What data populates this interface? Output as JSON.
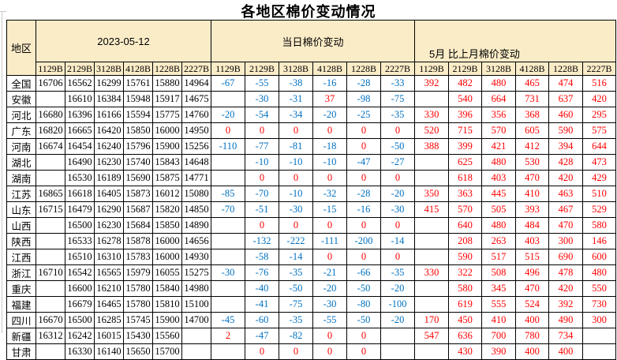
{
  "title": "各地区棉价变动情况",
  "colors": {
    "header_bg": "#FBECC8",
    "negative_value": "#0070C0",
    "positive_value": "#FF0000",
    "border": "#000000",
    "gridline": "#C9C9C9"
  },
  "header": {
    "region_label": "地区",
    "groups": [
      {
        "label": "2023-05-12"
      },
      {
        "label": "当日棉价变动"
      },
      {
        "label": "5月 比上月棉价变动"
      }
    ],
    "subcols": [
      "1129B",
      "2129B",
      "3128B",
      "4128B",
      "1228B",
      "2227B"
    ]
  },
  "rows": [
    {
      "region": "全国",
      "prices": [
        "16706",
        "16562",
        "16299",
        "15761",
        "15880",
        "14964"
      ],
      "daily": [
        "-67",
        "-55",
        "-38",
        "-16",
        "-28",
        "-33"
      ],
      "monthly": [
        "392",
        "482",
        "480",
        "465",
        "474",
        "516"
      ]
    },
    {
      "region": "安徽",
      "prices": [
        "",
        "16610",
        "16384",
        "15948",
        "15917",
        "14675"
      ],
      "daily": [
        "",
        "-30",
        "-31",
        "37",
        "-98",
        "-75"
      ],
      "monthly": [
        "",
        "540",
        "664",
        "731",
        "637",
        "420"
      ]
    },
    {
      "region": "河北",
      "prices": [
        "16680",
        "16396",
        "16166",
        "15594",
        "15775",
        "14760"
      ],
      "daily": [
        "-20",
        "-54",
        "-34",
        "-20",
        "-25",
        "-35"
      ],
      "monthly": [
        "330",
        "396",
        "356",
        "368",
        "460",
        "295"
      ]
    },
    {
      "region": "广东",
      "prices": [
        "16820",
        "16665",
        "16420",
        "15850",
        "16000",
        "14950"
      ],
      "daily": [
        "0",
        "0",
        "0",
        "0",
        "0",
        "0"
      ],
      "monthly": [
        "520",
        "715",
        "570",
        "605",
        "590",
        "575"
      ]
    },
    {
      "region": "河南",
      "prices": [
        "16674",
        "16454",
        "16240",
        "15796",
        "15900",
        "15256"
      ],
      "daily": [
        "-110",
        "-77",
        "-81",
        "-18",
        "0",
        "-50"
      ],
      "monthly": [
        "388",
        "399",
        "421",
        "412",
        "394",
        "644"
      ]
    },
    {
      "region": "湖北",
      "prices": [
        "",
        "16490",
        "16230",
        "15740",
        "15843",
        "14648"
      ],
      "daily": [
        "",
        "-10",
        "-10",
        "-10",
        "-47",
        "-27"
      ],
      "monthly": [
        "",
        "625",
        "480",
        "530",
        "428",
        "473"
      ]
    },
    {
      "region": "湖南",
      "prices": [
        "",
        "16530",
        "16189",
        "15690",
        "15875",
        "14771"
      ],
      "daily": [
        "",
        "0",
        "0",
        "0",
        "0",
        "0"
      ],
      "monthly": [
        "",
        "618",
        "403",
        "470",
        "420",
        "429"
      ]
    },
    {
      "region": "江苏",
      "prices": [
        "16865",
        "16618",
        "16405",
        "15873",
        "16012",
        "15080"
      ],
      "daily": [
        "-85",
        "-70",
        "-10",
        "-32",
        "-28",
        "-20"
      ],
      "monthly": [
        "350",
        "363",
        "445",
        "410",
        "463",
        "510"
      ]
    },
    {
      "region": "山东",
      "prices": [
        "16715",
        "16479",
        "16290",
        "15687",
        "15820",
        "14850"
      ],
      "daily": [
        "-70",
        "-51",
        "-30",
        "-15",
        "-16",
        "-30"
      ],
      "monthly": [
        "415",
        "570",
        "505",
        "393",
        "467",
        "529"
      ]
    },
    {
      "region": "山西",
      "prices": [
        "",
        "16500",
        "16230",
        "15684",
        "15850",
        "14890"
      ],
      "daily": [
        "",
        "0",
        "0",
        "0",
        "0",
        "0"
      ],
      "monthly": [
        "",
        "640",
        "480",
        "484",
        "470",
        "580"
      ]
    },
    {
      "region": "陕西",
      "prices": [
        "",
        "16533",
        "16278",
        "15878",
        "16000",
        "14656"
      ],
      "daily": [
        "",
        "-132",
        "-222",
        "-111",
        "-200",
        "-14"
      ],
      "monthly": [
        "",
        "208",
        "263",
        "403",
        "300",
        "146"
      ]
    },
    {
      "region": "江西",
      "prices": [
        "",
        "16510",
        "16310",
        "15783",
        "16000",
        "14930"
      ],
      "daily": [
        "",
        "-58",
        "-14",
        "0",
        "0",
        "0"
      ],
      "monthly": [
        "",
        "590",
        "517",
        "515",
        "690",
        "600"
      ]
    },
    {
      "region": "浙江",
      "prices": [
        "16710",
        "16542",
        "16565",
        "15979",
        "16055",
        "15275"
      ],
      "daily": [
        "-30",
        "-76",
        "-35",
        "-21",
        "-66",
        "-35"
      ],
      "monthly": [
        "330",
        "322",
        "508",
        "496",
        "478",
        "480"
      ]
    },
    {
      "region": "重庆",
      "prices": [
        "",
        "16600",
        "16210",
        "15780",
        "15840",
        "14980"
      ],
      "daily": [
        "",
        "-40",
        "-50",
        "-20",
        "-50",
        "-20"
      ],
      "monthly": [
        "",
        "580",
        "345",
        "470",
        "420",
        "550"
      ]
    },
    {
      "region": "福建",
      "prices": [
        "",
        "16679",
        "16465",
        "15780",
        "15810",
        "15100"
      ],
      "daily": [
        "",
        "-41",
        "-75",
        "-30",
        "-80",
        "-100"
      ],
      "monthly": [
        "",
        "619",
        "555",
        "524",
        "392",
        "730"
      ]
    },
    {
      "region": "四川",
      "prices": [
        "16670",
        "16500",
        "16285",
        "15745",
        "15900",
        "14700"
      ],
      "daily": [
        "-45",
        "-60",
        "-35",
        "-55",
        "-50",
        "-20"
      ],
      "monthly": [
        "170",
        "450",
        "410",
        "400",
        "490",
        "300"
      ]
    },
    {
      "region": "新疆",
      "prices": [
        "16312",
        "16242",
        "16015",
        "15430",
        "15560",
        ""
      ],
      "daily": [
        "2",
        "-47",
        "-82",
        "0",
        "0",
        ""
      ],
      "monthly": [
        "547",
        "636",
        "700",
        "780",
        "734",
        ""
      ]
    },
    {
      "region": "甘肃",
      "prices": [
        "",
        "16330",
        "16140",
        "15650",
        "15700",
        ""
      ],
      "daily": [
        "",
        "0",
        "0",
        "0",
        "0",
        ""
      ],
      "monthly": [
        "",
        "430",
        "390",
        "400",
        "400",
        ""
      ]
    }
  ]
}
